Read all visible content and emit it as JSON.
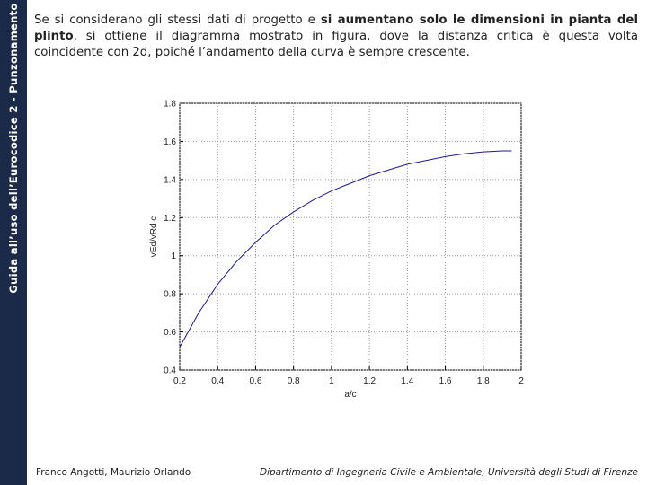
{
  "sidebar": "Guida all’uso dell’Eurocodice 2 - Punzonamento",
  "paragraph": [
    {
      "text": "Se si considerano gli stessi dati di progetto e ",
      "bold": false
    },
    {
      "text": "si aumentano solo le dimensioni in pianta del plinto",
      "bold": true
    },
    {
      "text": ", si ottiene il diagramma mostrato in figura, dove la distanza critica è questa volta coincidente con 2d, poiché l’andamento della curva è sempre crescente.",
      "bold": false
    }
  ],
  "chart_data": {
    "type": "line",
    "x": [
      0.2,
      0.3,
      0.4,
      0.5,
      0.6,
      0.7,
      0.8,
      0.9,
      1.0,
      1.1,
      1.2,
      1.3,
      1.4,
      1.5,
      1.6,
      1.7,
      1.8,
      1.9,
      1.95
    ],
    "values": [
      0.52,
      0.7,
      0.85,
      0.97,
      1.07,
      1.16,
      1.23,
      1.29,
      1.34,
      1.38,
      1.42,
      1.45,
      1.48,
      1.5,
      1.52,
      1.535,
      1.545,
      1.55,
      1.55
    ],
    "color": "#1a1a8c",
    "xlim": [
      0.2,
      2
    ],
    "ylim": [
      0.4,
      1.8
    ],
    "xticks": [
      0.2,
      0.4,
      0.6,
      0.8,
      1,
      1.2,
      1.4,
      1.6,
      1.8,
      2
    ],
    "yticks": [
      0.4,
      0.6,
      0.8,
      1,
      1.2,
      1.4,
      1.6,
      1.8
    ],
    "xlabel": "a/c",
    "ylabel": "vEd/vRd c",
    "grid": true
  },
  "footer": {
    "left": "Franco Angotti, Maurizio Orlando",
    "right": "Dipartimento di Ingegneria Civile e Ambientale, Università degli Studi di Firenze"
  }
}
